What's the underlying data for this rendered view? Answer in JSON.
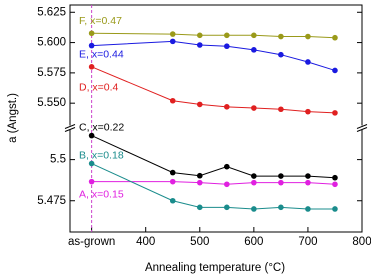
{
  "chart_data": {
    "type": "line",
    "x_label": "Annealing temperature (°C)",
    "y_label": "a (Angst.)",
    "x": [
      300,
      450,
      500,
      550,
      600,
      650,
      700,
      750
    ],
    "xlim": [
      260,
      800
    ],
    "xticks": [
      {
        "value": 300,
        "label": "as-grown"
      },
      400,
      500,
      600,
      700,
      800
    ],
    "y_segments": [
      {
        "ylim": [
          5.456,
          5.518
        ],
        "yticks": [
          5.475,
          5.5
        ]
      },
      {
        "ylim": [
          5.532,
          5.631
        ],
        "yticks": [
          {
            "value": 5.55,
            "label": "5.550"
          },
          5.575,
          {
            "value": 5.6,
            "label": "5.600"
          },
          5.625
        ]
      }
    ],
    "vline": {
      "x": 300,
      "color": "#cc44cc"
    },
    "series": [
      {
        "name": "A, x=0.15",
        "color": "#e020e0",
        "values": [
          5.4866,
          5.4866,
          5.486,
          5.485,
          5.486,
          5.486,
          5.486,
          5.485
        ]
      },
      {
        "name": "B, x=0.18",
        "color": "#1a8c8c",
        "values": [
          5.4976,
          5.475,
          5.471,
          5.471,
          5.47,
          5.471,
          5.47,
          5.47
        ]
      },
      {
        "name": "C, x=0.22",
        "color": "#000000",
        "values": [
          5.5146,
          5.4921,
          5.4902,
          5.4957,
          5.49,
          5.49,
          5.49,
          5.489
        ]
      },
      {
        "name": "D, x=0.4",
        "color": "#e02020",
        "values": [
          5.58,
          5.552,
          5.549,
          5.547,
          5.546,
          5.545,
          5.543,
          5.542
        ]
      },
      {
        "name": "E, x=0.44",
        "color": "#1a1ae0",
        "values": [
          5.5975,
          5.601,
          5.598,
          5.597,
          5.594,
          5.59,
          5.584,
          5.577
        ]
      },
      {
        "name": "F, x=0.47",
        "color": "#9a9a1a",
        "values": [
          5.6077,
          5.607,
          5.606,
          5.606,
          5.606,
          5.605,
          5.605,
          5.604
        ]
      }
    ]
  }
}
